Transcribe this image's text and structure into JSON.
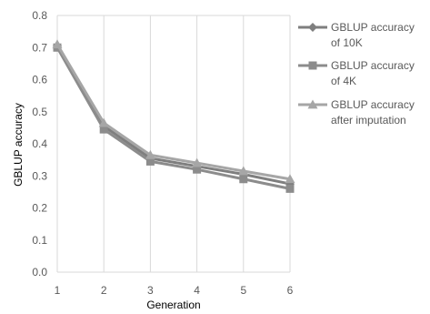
{
  "chart_data": {
    "type": "line",
    "x": [
      1,
      2,
      3,
      4,
      5,
      6
    ],
    "xlabel": "Generation",
    "ylabel": "GBLUP accuracy",
    "ylim": [
      0,
      0.8
    ],
    "yticks": [
      "0.0",
      "0.1",
      "0.2",
      "0.3",
      "0.4",
      "0.5",
      "0.6",
      "0.7",
      "0.8"
    ],
    "xticks": [
      "1",
      "2",
      "3",
      "4",
      "5",
      "6"
    ],
    "grid": "vertical",
    "legend": "right",
    "series": [
      {
        "name": "GBLUP accuracy of 10K",
        "name_lines": [
          "GBLUP accuracy",
          "of 10K"
        ],
        "marker": "diamond",
        "color": "#7f7f7f",
        "values": [
          0.705,
          0.455,
          0.355,
          0.33,
          0.305,
          0.275
        ]
      },
      {
        "name": "GBLUP accuracy of 4K",
        "name_lines": [
          "GBLUP accuracy",
          "of 4K"
        ],
        "marker": "square",
        "color": "#8c8c8c",
        "values": [
          0.7,
          0.445,
          0.345,
          0.32,
          0.29,
          0.26
        ]
      },
      {
        "name": "GBLUP accuracy after imputation",
        "name_lines": [
          "GBLUP accuracy",
          "after imputation"
        ],
        "marker": "triangle",
        "color": "#a6a6a6",
        "values": [
          0.71,
          0.465,
          0.365,
          0.34,
          0.315,
          0.29
        ]
      }
    ]
  }
}
